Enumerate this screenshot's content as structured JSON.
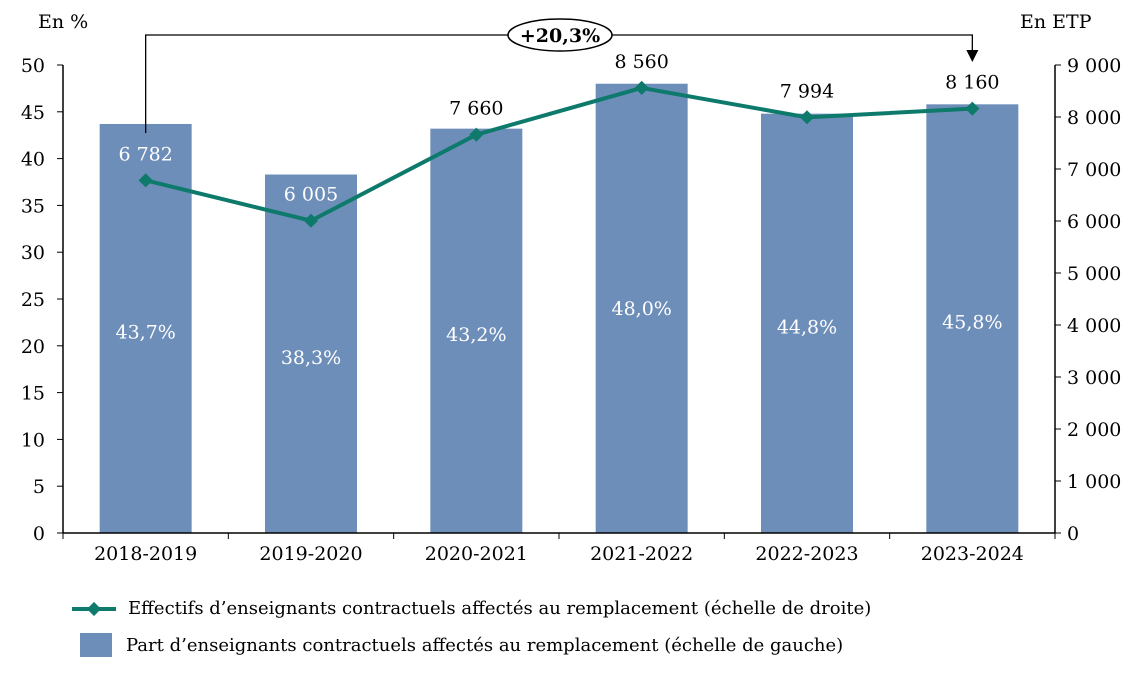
{
  "chart_data": {
    "type": "bar+line",
    "categories": [
      "2018-2019",
      "2019-2020",
      "2020-2021",
      "2021-2022",
      "2022-2023",
      "2023-2024"
    ],
    "left_axis": {
      "label": "En %",
      "ylim": [
        0,
        50
      ],
      "ticks": [
        "0",
        "5",
        "10",
        "15",
        "20",
        "25",
        "30",
        "35",
        "40",
        "45",
        "50"
      ]
    },
    "right_axis": {
      "label": "En ETP",
      "ylim": [
        0,
        9000
      ],
      "ticks": [
        "0",
        "1 000",
        "2 000",
        "3 000",
        "4 000",
        "5 000",
        "6 000",
        "7 000",
        "8 000",
        "9 000"
      ]
    },
    "series": [
      {
        "name": "Part d’enseignants contractuels affectés au remplacement (échelle de gauche)",
        "type": "bar",
        "axis": "left",
        "values": [
          43.7,
          38.3,
          43.2,
          48.0,
          44.8,
          45.8
        ],
        "labels": [
          "43,7%",
          "38,3%",
          "43,2%",
          "48,0%",
          "44,8%",
          "45,8%"
        ],
        "color": "#6E8EBA"
      },
      {
        "name": "Effectifs d’enseignants contractuels affectés au remplacement (échelle de droite)",
        "type": "line",
        "axis": "right",
        "values": [
          6782,
          6005,
          7660,
          8560,
          7994,
          8160
        ],
        "labels": [
          "6 782",
          "6 005",
          "7 660",
          "8 560",
          "7 994",
          "8 160"
        ],
        "color": "#0E7A6C"
      }
    ],
    "annotation": {
      "text": "+20,3%",
      "from": "2018-2019",
      "to": "2023-2024"
    },
    "grid": false,
    "legend_position": "bottom"
  }
}
